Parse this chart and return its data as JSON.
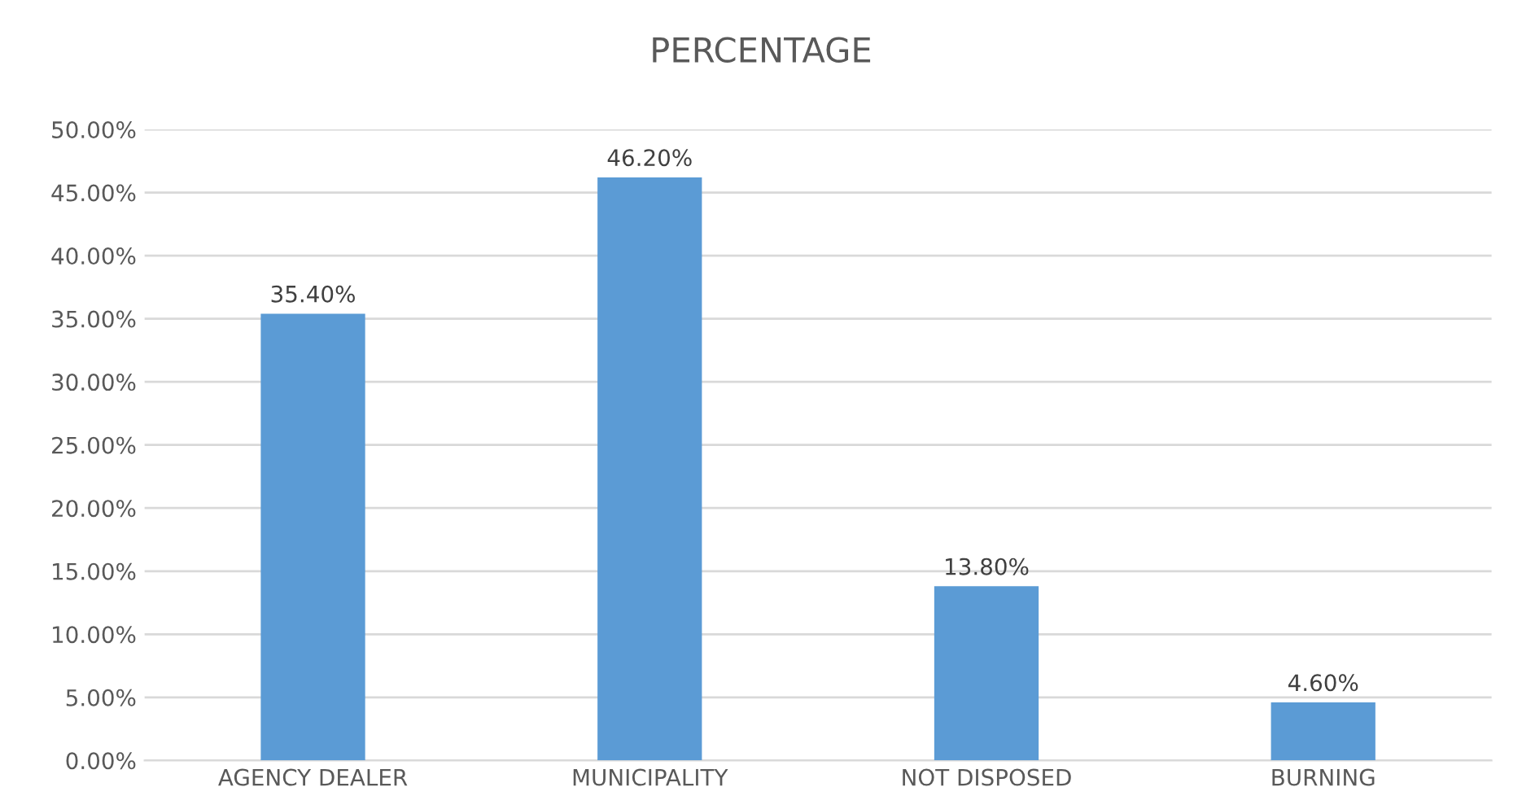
{
  "chart_data": {
    "type": "bar",
    "title": "PERCENTAGE",
    "categories": [
      "AGENCY DEALER",
      "MUNICIPALITY",
      "NOT DISPOSED",
      "BURNING"
    ],
    "values": [
      35.4,
      46.2,
      13.8,
      4.6
    ],
    "color": "#5b9bd5",
    "value_labels": [
      "35.40%",
      "46.20%",
      "13.80%",
      "4.60%"
    ],
    "ylim": [
      0,
      50
    ],
    "yticks": [
      {
        "value": 0,
        "label": "0.00%"
      },
      {
        "value": 5,
        "label": "5.00%"
      },
      {
        "value": 10,
        "label": "10.00%"
      },
      {
        "value": 15,
        "label": "15.00%"
      },
      {
        "value": 20,
        "label": "20.00%"
      },
      {
        "value": 25,
        "label": "25.00%"
      },
      {
        "value": 30,
        "label": "30.00%"
      },
      {
        "value": 35,
        "label": "35.00%"
      },
      {
        "value": 40,
        "label": "40.00%"
      },
      {
        "value": 45,
        "label": "45.00%"
      },
      {
        "value": 50,
        "label": "50.00%"
      }
    ],
    "grid": "y"
  }
}
